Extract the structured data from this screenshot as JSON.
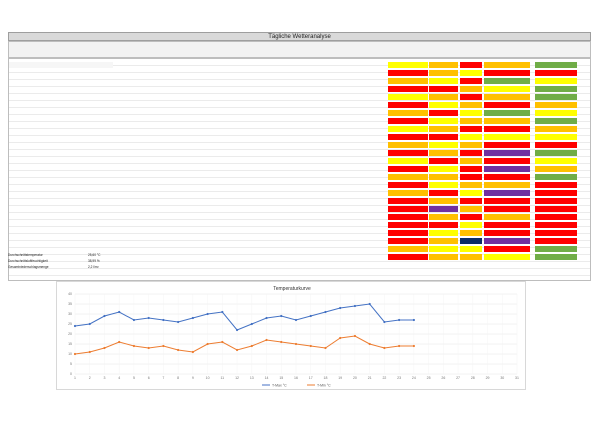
{
  "document_title": "Tägliche Wetteranalyse",
  "table": {
    "row_colors": [
      {
        "cells": [
          {
            "x": 0.72,
            "w": 0.05,
            "color": "#ffff00"
          },
          {
            "x": 0.8,
            "w": 0.03,
            "color": "#ffc000"
          },
          {
            "x": 0.84,
            "w": 0.03,
            "color": "#ff0000"
          },
          {
            "x": 0.89,
            "w": 0.04,
            "color": "#ffc000"
          },
          {
            "x": 0.94,
            "w": 0.04,
            "color": "#70ad47"
          }
        ]
      }
    ]
  },
  "summary": {
    "labels": [
      "Durchschnittstemperatur",
      "Durchschnittsluftfeuchtigkeit",
      "Gesamtniederschlagsmenge"
    ],
    "values": [
      "25,60 °C",
      "38,99 %",
      "2,2 l/m²"
    ]
  },
  "chart_data": {
    "type": "line",
    "title": "Temperaturkurve",
    "x": [
      1,
      2,
      3,
      4,
      5,
      6,
      7,
      8,
      9,
      10,
      11,
      12,
      13,
      14,
      15,
      16,
      17,
      18,
      19,
      20,
      21,
      22,
      23,
      24,
      25,
      26,
      27,
      28,
      29,
      30,
      31
    ],
    "ylim": [
      0,
      40
    ],
    "y_ticks": [
      0,
      5,
      10,
      15,
      20,
      25,
      30,
      35,
      40
    ],
    "series": [
      {
        "name": "T-Max °C",
        "color": "#4472c4",
        "values": [
          24,
          25,
          29,
          31,
          27,
          28,
          27,
          26,
          28,
          30,
          31,
          22,
          25,
          28,
          29,
          27,
          29,
          31,
          33,
          34,
          35,
          26,
          27,
          27,
          null,
          null,
          null,
          null,
          null,
          null,
          null
        ]
      },
      {
        "name": "T-Min °C",
        "color": "#ed7d31",
        "values": [
          10,
          11,
          13,
          16,
          14,
          13,
          14,
          12,
          11,
          15,
          16,
          12,
          14,
          17,
          16,
          15,
          14,
          13,
          18,
          19,
          15,
          13,
          14,
          14,
          null,
          null,
          null,
          null,
          null,
          null,
          null
        ]
      }
    ],
    "legend_position": "bottom"
  }
}
